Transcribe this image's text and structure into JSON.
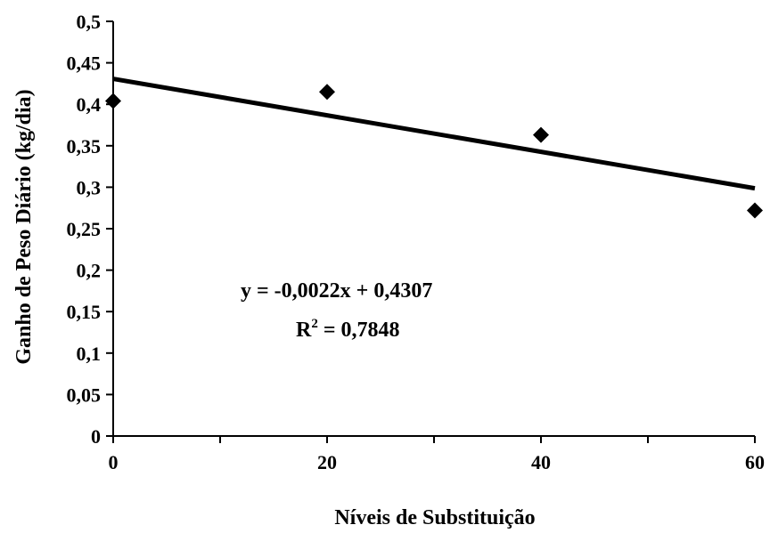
{
  "chart_data": {
    "type": "scatter",
    "xlabel": "Níveis de Substituição",
    "ylabel": "Ganho de Peso Diário (kg/dia)",
    "xlim": [
      0,
      60
    ],
    "ylim": [
      0,
      0.5
    ],
    "x_ticks": [
      0,
      10,
      20,
      30,
      40,
      50,
      60
    ],
    "x_tick_labels": [
      "0",
      "",
      "20",
      "",
      "40",
      "",
      "60"
    ],
    "y_ticks": [
      0,
      0.05,
      0.1,
      0.15,
      0.2,
      0.25,
      0.3,
      0.35,
      0.4,
      0.45,
      0.5
    ],
    "y_tick_labels": [
      "0",
      "0,05",
      "0,1",
      "0,15",
      "0,2",
      "0,25",
      "0,3",
      "0,35",
      "0,4",
      "0,45",
      "0,5"
    ],
    "grid": false,
    "points": {
      "x": [
        0,
        20,
        40,
        60
      ],
      "y": [
        0.404,
        0.415,
        0.363,
        0.272
      ],
      "marker": "diamond",
      "color": "#000000"
    },
    "trendline": {
      "slope": -0.0022,
      "intercept": 0.4307,
      "x_range": [
        0,
        60
      ],
      "color": "#000000"
    },
    "annotation": {
      "equation": "y = -0,0022x + 0,4307",
      "r2_prefix": "R",
      "r2_superscript": "2",
      "r2_value": " = 0,7848"
    }
  }
}
